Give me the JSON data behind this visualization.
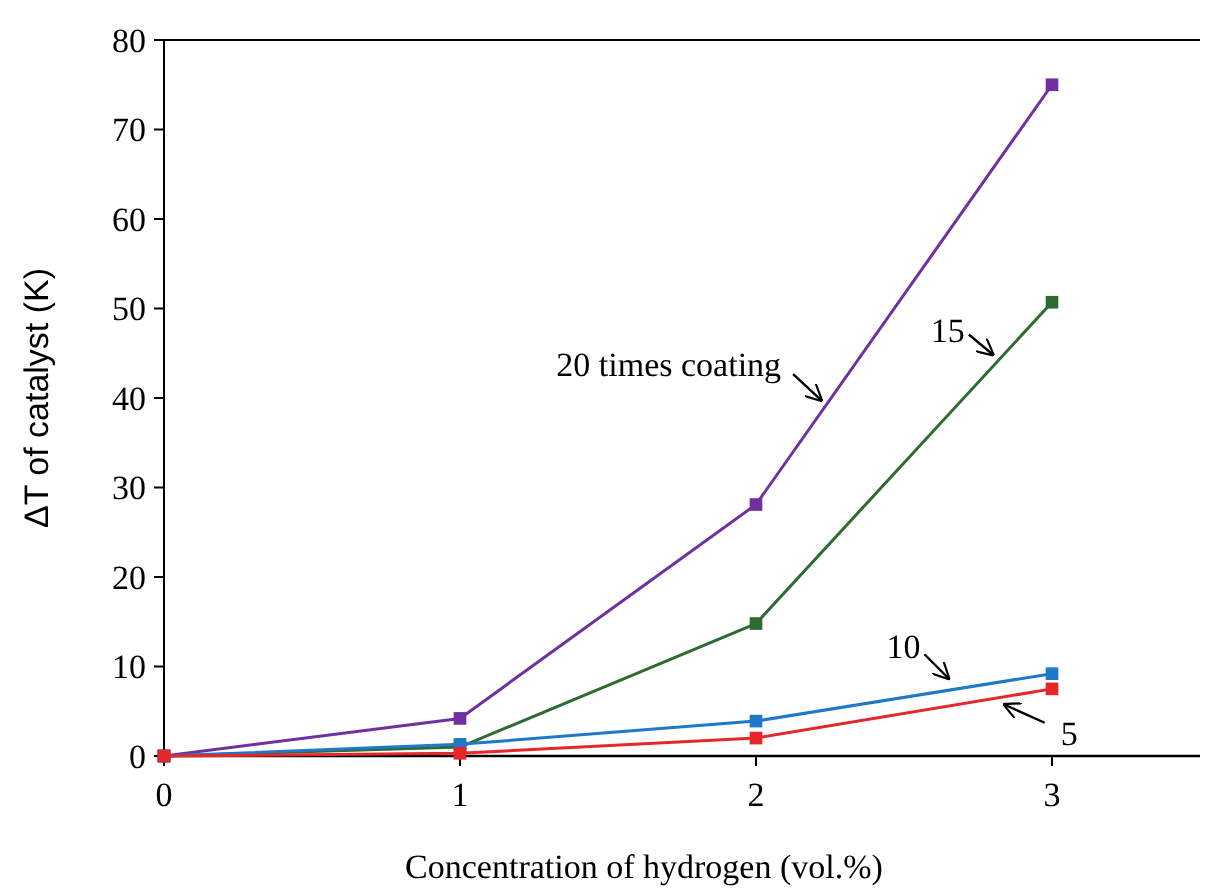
{
  "chart_data": {
    "type": "line",
    "xlabel": "Concentration of hydrogen (vol.%)",
    "ylabel": "ΔT of catalyst (K)",
    "x": [
      0,
      1,
      2,
      3
    ],
    "xlim": [
      0,
      3.5
    ],
    "xticks": [
      0,
      1,
      2,
      3
    ],
    "ylim": [
      0,
      80
    ],
    "yticks": [
      0,
      10,
      20,
      30,
      40,
      50,
      60,
      70,
      80
    ],
    "grid": false,
    "legend": false,
    "marker": "square",
    "line_style": "solid",
    "series": [
      {
        "name": "20 times coating",
        "color": "#7030a0",
        "values": [
          0,
          4.2,
          28.1,
          75
        ]
      },
      {
        "name": "15",
        "color": "#2e6b30",
        "values": [
          0,
          1,
          14.8,
          50.7
        ]
      },
      {
        "name": "10",
        "color": "#1f78c8",
        "values": [
          0,
          1.3,
          3.9,
          9.2
        ]
      },
      {
        "name": "5",
        "color": "#e8262a",
        "values": [
          0,
          0.3,
          2,
          7.5
        ]
      }
    ]
  }
}
